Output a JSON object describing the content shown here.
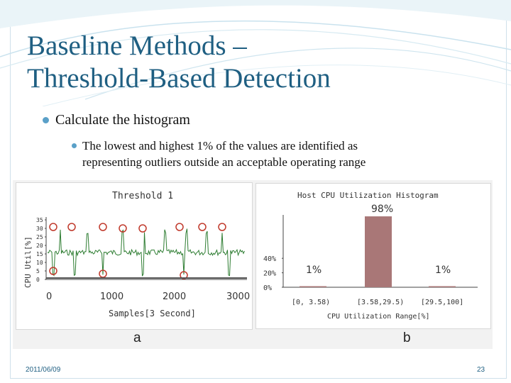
{
  "slide": {
    "title_line1": "Baseline Methods –",
    "title_line2": "Threshold-Based Detection",
    "bullet1": "Calculate the histogram",
    "bullet2_line1": "The lowest and highest 1% of the values are identified as",
    "bullet2_line2": "representing outliers outside an acceptable operating range",
    "footer_date": "2011/06/09",
    "page_number": "23",
    "colors": {
      "title": "#1f5f82",
      "bullet": "#5aa0c8",
      "bar": "#a97777",
      "line": "#2e7d32",
      "marker": "#c0392b"
    }
  },
  "figure_a": {
    "label": "a",
    "title": "Threshold 1",
    "ylabel": "CPU Util[%]",
    "xlabel": "Samples[3 Second]",
    "x_ticks": [
      "0",
      "1000",
      "2000",
      "3000"
    ],
    "y_ticks": [
      "0",
      "5",
      "10",
      "15",
      "20",
      "25",
      "30",
      "35"
    ]
  },
  "figure_b": {
    "label": "b",
    "title": "Host CPU Utilization Histogram",
    "xlabel": "CPU Utilization Range[%]",
    "y_ticks": [
      "0%",
      "20%",
      "40%"
    ],
    "bars": [
      {
        "label": "1%",
        "category": "[0, 3.58)",
        "value": 1
      },
      {
        "label": "98%",
        "category": "[3.58,29.5)",
        "value": 98
      },
      {
        "label": "1%",
        "category": "[29.5,100]",
        "value": 1
      }
    ]
  }
}
